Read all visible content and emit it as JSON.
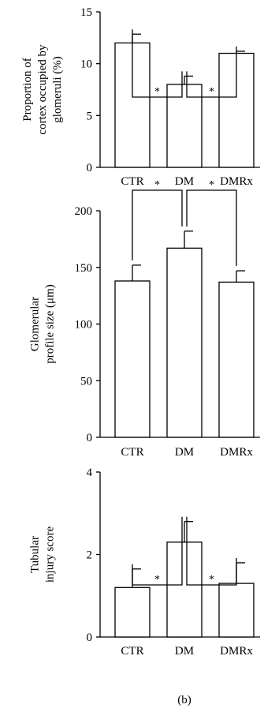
{
  "figure": {
    "caption": "(b)"
  },
  "chart_data": [
    {
      "type": "bar",
      "ylabel_lines": [
        "Proportion of",
        "cortex occupied by",
        "glomeruli (%)"
      ],
      "categories": [
        "CTR",
        "DM",
        "DMRx"
      ],
      "values": [
        12.0,
        8.0,
        11.0
      ],
      "errors": [
        0.85,
        0.8,
        0.2
      ],
      "ylim": [
        0,
        15
      ],
      "yticks": [
        0,
        5,
        10,
        15
      ],
      "significance": [
        {
          "pair": [
            "CTR",
            "DM"
          ],
          "label": "*"
        },
        {
          "pair": [
            "DM",
            "DMRx"
          ],
          "label": "*"
        }
      ],
      "grid": false
    },
    {
      "type": "bar",
      "ylabel_lines": [
        "Glomerular",
        "profile size (μm)"
      ],
      "categories": [
        "CTR",
        "DM",
        "DMRx"
      ],
      "values": [
        138,
        167,
        137
      ],
      "errors": [
        14,
        15,
        10
      ],
      "ylim": [
        0,
        200
      ],
      "yticks": [
        0,
        50,
        100,
        150,
        200
      ],
      "significance": [
        {
          "pair": [
            "CTR",
            "DM"
          ],
          "label": "*"
        },
        {
          "pair": [
            "DM",
            "DMRx"
          ],
          "label": "*"
        }
      ],
      "grid": false
    },
    {
      "type": "bar",
      "ylabel_lines": [
        "Tubular",
        "injury score"
      ],
      "categories": [
        "CTR",
        "DM",
        "DMRx"
      ],
      "values": [
        1.2,
        2.3,
        1.3
      ],
      "errors": [
        0.45,
        0.5,
        0.5
      ],
      "ylim": [
        0,
        4
      ],
      "yticks": [
        0,
        2,
        4
      ],
      "significance": [
        {
          "pair": [
            "CTR",
            "DM"
          ],
          "label": "*"
        },
        {
          "pair": [
            "DM",
            "DMRx"
          ],
          "label": "*"
        }
      ],
      "grid": false
    }
  ]
}
